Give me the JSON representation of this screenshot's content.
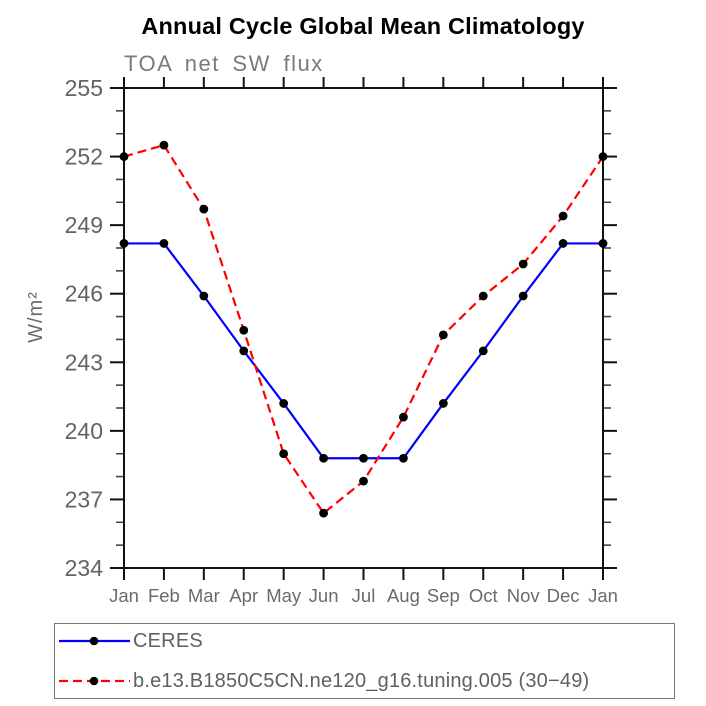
{
  "chart_data": {
    "type": "line",
    "title": "Annual Cycle Global Mean Climatology",
    "subtitle": "TOA net SW flux",
    "ylabel": "W/m²",
    "xlabel": "",
    "categories": [
      "Jan",
      "Feb",
      "Mar",
      "Apr",
      "May",
      "Jun",
      "Jul",
      "Aug",
      "Sep",
      "Oct",
      "Nov",
      "Dec",
      "Jan"
    ],
    "ylim": [
      234,
      255
    ],
    "ytick_major_interval": 3,
    "ytick_minor_interval": 1,
    "grid": false,
    "legend_position": "bottom-left",
    "series": [
      {
        "name": "CERES",
        "color": "#0000ff",
        "line_style": "solid",
        "marker": "filled-circle",
        "marker_color": "#000000",
        "values": [
          248.2,
          248.2,
          245.9,
          243.5,
          241.2,
          238.8,
          238.8,
          238.8,
          241.2,
          243.5,
          245.9,
          248.2,
          248.2
        ]
      },
      {
        "name": "b.e13.B1850C5CN.ne120_g16.tuning.005 (30−49)",
        "color": "#ff0000",
        "line_style": "dashed",
        "marker": "filled-circle",
        "marker_color": "#000000",
        "values": [
          252.0,
          252.5,
          249.7,
          244.4,
          239.0,
          236.4,
          237.8,
          240.6,
          244.2,
          245.9,
          247.3,
          249.4,
          252.0
        ]
      }
    ]
  },
  "colors": {
    "axis": "#111111",
    "tick_labels": "#636363",
    "month_labels": "#6b6b6b",
    "title": "#000000",
    "subtitle": "#7a7a7a",
    "background": "#ffffff"
  }
}
